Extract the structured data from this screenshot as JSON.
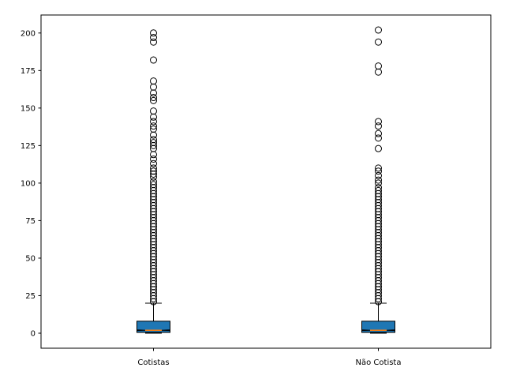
{
  "chart_data": {
    "type": "box",
    "title": "",
    "xlabel": "",
    "ylabel": "",
    "categories": [
      "Cotistas",
      "Não Cotista"
    ],
    "ylim": [
      -10,
      212
    ],
    "yticks": [
      0,
      25,
      50,
      75,
      100,
      125,
      150,
      175,
      200
    ],
    "grid": false,
    "box_color": "#1f77b4",
    "median_color": "#ff7f0e",
    "series": [
      {
        "q1": 0.5,
        "median": 2,
        "q3": 8,
        "whisker_low": 0,
        "whisker_high": 20,
        "notch_low": 1.8,
        "notch_high": 2.2,
        "outliers": [
          200,
          197,
          194,
          182,
          168,
          164,
          160,
          157,
          155,
          148,
          144,
          141,
          138,
          136,
          132,
          129,
          127,
          125,
          123,
          119,
          116,
          113,
          110,
          108,
          106,
          104,
          101,
          99,
          97,
          95,
          93,
          91,
          89,
          87,
          85,
          83,
          81,
          79,
          77,
          75,
          73,
          71,
          69,
          67,
          65,
          63,
          61,
          59,
          57,
          55,
          53,
          51,
          49,
          47,
          45,
          43,
          41,
          39,
          37,
          35,
          33,
          31,
          29,
          27,
          25,
          23,
          21
        ]
      },
      {
        "q1": 0.5,
        "median": 2,
        "q3": 8,
        "whisker_low": 0,
        "whisker_high": 20,
        "notch_low": 1.8,
        "notch_high": 2.2,
        "outliers": [
          202,
          194,
          178,
          174,
          141,
          138,
          133,
          130,
          123,
          110,
          108,
          105,
          102,
          100,
          97,
          95,
          93,
          91,
          89,
          87,
          85,
          83,
          81,
          79,
          77,
          75,
          73,
          71,
          69,
          67,
          65,
          63,
          61,
          59,
          57,
          55,
          53,
          51,
          49,
          47,
          45,
          43,
          41,
          39,
          37,
          35,
          33,
          31,
          29,
          27,
          25,
          23,
          21
        ]
      }
    ]
  }
}
